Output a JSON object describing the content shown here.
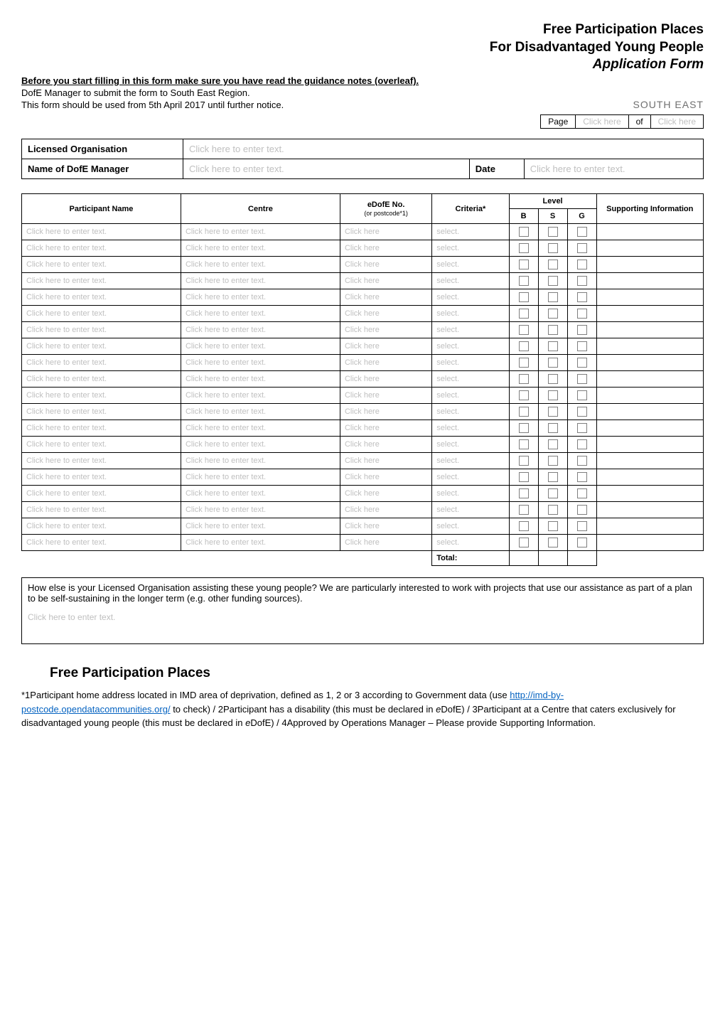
{
  "header": {
    "title_line1": "Free Participation Places",
    "title_line2": "For Disadvantaged Young People",
    "title_line3": "Application Form"
  },
  "intro": {
    "line1": "Before you start filling in this form make sure you have read the guidance notes (overleaf).",
    "line2": "DofE Manager to submit the form to South East Region.",
    "line3": "This form should be used from 5th April 2017 until further notice.",
    "south_east": "SOUTH EAST"
  },
  "page_of": {
    "page_label": "Page",
    "page_val": "Click here",
    "of_label": "of",
    "of_val": "Click here"
  },
  "meta": {
    "licensed_org_label": "Licensed Organisation",
    "licensed_org_val": "Click here to enter text.",
    "manager_label": "Name of DofE Manager",
    "manager_val": "Click here to enter text.",
    "date_label": "Date",
    "date_val": "Click here to enter text."
  },
  "table": {
    "headers": {
      "participant": "Participant Name",
      "centre": "Centre",
      "edofe": "eDofE No.",
      "edofe_sub": "(or postcode*1)",
      "criteria": "Criteria*",
      "level": "Level",
      "b": "B",
      "s": "S",
      "g": "G",
      "supporting": "Supporting Information"
    },
    "placeholder_name": "Click here to enter text.",
    "placeholder_centre": "Click here to enter text.",
    "placeholder_edofe": "Click here",
    "placeholder_criteria": "select.",
    "total_label": "Total:",
    "row_count": 20
  },
  "howelse": {
    "question": "How else is your Licensed Organisation assisting these young people?  We are particularly interested to work with projects that use our assistance as part of a plan to be self-sustaining in the longer term (e.g. other funding sources).",
    "answer": "Click here to enter text."
  },
  "section2_title": "Free Participation Places",
  "footnote": {
    "p1a": "*1Participant home address located in IMD area of deprivation, defined as  1, 2 or 3 according to Government data (use ",
    "link_text": "http://imd-by-postcode.opendatacommunities.org/",
    "link_href": "http://imd-by-postcode.opendatacommunities.org/",
    "p1b": " to check) / 2Participant has a disability (this must be declared in ",
    "edofe": "e",
    "dofe": "DofE) / 3Participant at a Centre that caters exclusively for disadvantaged young people (this must be declared in ",
    "p1c": "DofE)  / 4Approved by Operations Manager – Please provide Supporting Information."
  },
  "style": {
    "placeholder_color": "#bfbfbf",
    "border_color": "#000000",
    "link_color": "#0563c1",
    "title_fontsize": 19,
    "body_fontsize": 12,
    "intro_fontsize": 13,
    "table_fontsize": 11
  }
}
